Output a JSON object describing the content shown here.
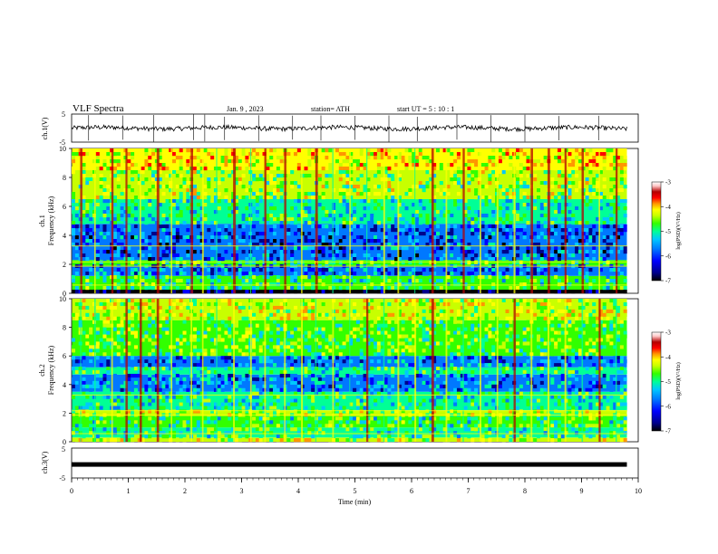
{
  "header": {
    "title": "VLF  Spectra",
    "date": "Jan.  9  , 2023",
    "station": "station= ATH",
    "start": "start  UT  =    5  : 10 : 1"
  },
  "colors": {
    "trace": "#000000",
    "colormap": [
      "#000000",
      "#00008b",
      "#0000ff",
      "#0078ff",
      "#00c8ff",
      "#00ff96",
      "#32ff00",
      "#c8ff00",
      "#ffff00",
      "#ff9600",
      "#ff0000",
      "#b40000",
      "#ffc8c8",
      "#ffffff"
    ]
  },
  "chart_data": [
    {
      "type": "line",
      "panel": "ch1-waveform",
      "ylabel": "ch.1(V)",
      "ylim": [
        -5,
        5
      ],
      "yticks": [
        "5",
        "-5"
      ],
      "xlim": [
        0,
        10
      ],
      "baseline_volts": 0,
      "spike_times_min": [
        0.3,
        0.9,
        1.45,
        2.15,
        2.35,
        2.7,
        3.3,
        3.9,
        4.4,
        5.0,
        5.6,
        6.1,
        6.8,
        7.4,
        8.0,
        8.6,
        9.3
      ]
    },
    {
      "type": "heatmap",
      "panel": "ch1-spectrogram",
      "ylabel": "ch.1\nFrequency  (kHz)",
      "yticks": [
        "10",
        "8",
        "6",
        "4",
        "2",
        "0"
      ],
      "ylim": [
        0,
        10
      ],
      "xlim": [
        0,
        9.8
      ],
      "colorbar": {
        "label": "log(PSD)(V²/Hz)",
        "ticks": [
          "-3",
          "-4",
          "-5",
          "-6",
          "-7"
        ],
        "range": [
          -7,
          -3
        ]
      },
      "bands_khz": [
        {
          "from": 0,
          "to": 0.25,
          "psd": -7
        },
        {
          "from": 0.25,
          "to": 1.2,
          "psd": -5.3
        },
        {
          "from": 1.2,
          "to": 1.9,
          "psd": -6.1
        },
        {
          "from": 1.9,
          "to": 2.3,
          "psd": -5.2
        },
        {
          "from": 2.3,
          "to": 4.8,
          "psd": -6.2
        },
        {
          "from": 4.8,
          "to": 6.5,
          "psd": -5.5
        },
        {
          "from": 6.5,
          "to": 8.5,
          "psd": -5.0
        },
        {
          "from": 8.5,
          "to": 10,
          "psd": -4.6
        }
      ],
      "sferic_times_min": [
        0.15,
        0.4,
        0.7,
        0.95,
        1.2,
        1.5,
        1.75,
        2.1,
        2.3,
        2.55,
        2.85,
        3.15,
        3.4,
        3.75,
        4.05,
        4.3,
        4.6,
        4.9,
        5.2,
        5.5,
        5.75,
        6.05,
        6.35,
        6.6,
        6.9,
        7.2,
        7.5,
        7.8,
        8.1,
        8.4,
        8.7,
        9.0,
        9.3,
        9.6
      ]
    },
    {
      "type": "heatmap",
      "panel": "ch2-spectrogram",
      "ylabel": "ch.2\nFrequency  (kHz)",
      "yticks": [
        "10",
        "8",
        "6",
        "4",
        "2",
        "0"
      ],
      "ylim": [
        0,
        10
      ],
      "xlim": [
        0,
        9.8
      ],
      "colorbar": {
        "label": "log(PSD)(V²/Hz)",
        "ticks": [
          "-3",
          "-4",
          "-5",
          "-6",
          "-7"
        ],
        "range": [
          -7,
          -3
        ]
      },
      "bands_khz": [
        {
          "from": 0,
          "to": 0.3,
          "psd": -4.8
        },
        {
          "from": 0.3,
          "to": 1.0,
          "psd": -5.4
        },
        {
          "from": 1.0,
          "to": 1.8,
          "psd": -5.3
        },
        {
          "from": 1.8,
          "to": 2.2,
          "psd": -4.9
        },
        {
          "from": 2.2,
          "to": 3.5,
          "psd": -5.5
        },
        {
          "from": 3.5,
          "to": 4.7,
          "psd": -6.0
        },
        {
          "from": 4.7,
          "to": 5.2,
          "psd": -5.4
        },
        {
          "from": 5.2,
          "to": 6.0,
          "psd": -6.1
        },
        {
          "from": 6.0,
          "to": 8.5,
          "psd": -5.1
        },
        {
          "from": 8.5,
          "to": 10,
          "psd": -4.8
        }
      ],
      "sferic_times_min": [
        0.15,
        0.4,
        0.7,
        0.95,
        1.2,
        1.5,
        1.75,
        2.1,
        2.3,
        2.55,
        2.85,
        3.15,
        3.4,
        3.75,
        4.05,
        4.3,
        4.6,
        4.9,
        5.2,
        5.5,
        5.75,
        6.05,
        6.35,
        6.6,
        6.9,
        7.2,
        7.5,
        7.8,
        8.1,
        8.4,
        8.7,
        9.0,
        9.3,
        9.6
      ]
    },
    {
      "type": "line",
      "panel": "ch3-waveform",
      "ylabel": "ch.3(V)",
      "ylim": [
        -5,
        5
      ],
      "yticks": [
        "5",
        "-5"
      ],
      "xlabel": "Time  (min)",
      "xlim": [
        0,
        10
      ],
      "xticks": [
        "0",
        "1",
        "2",
        "3",
        "4",
        "5",
        "6",
        "7",
        "8",
        "9",
        "10"
      ],
      "baseline_volts": -0.5
    }
  ]
}
